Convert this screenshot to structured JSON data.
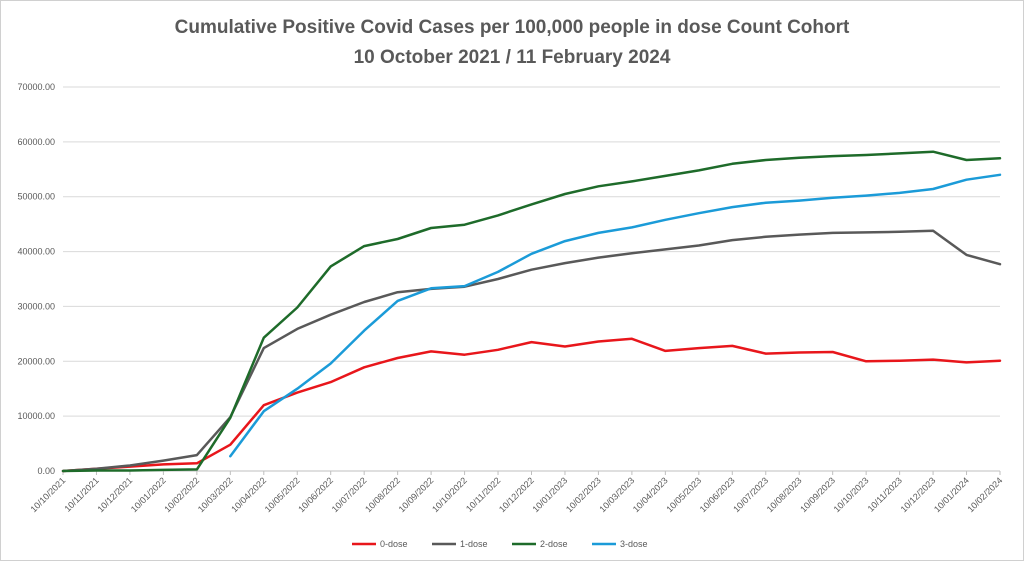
{
  "chart_data": {
    "type": "line",
    "title": "Cumulative Positive Covid Cases per 100,000 people in dose Count Cohort",
    "subtitle": "10 October 2021 / 11 February 2024",
    "xlabel": "",
    "ylabel": "",
    "ylim": [
      0,
      70000
    ],
    "yticks": [
      "0.00",
      "10000.00",
      "20000.00",
      "30000.00",
      "40000.00",
      "50000.00",
      "60000.00",
      "70000.00"
    ],
    "grid": true,
    "legend_position": "bottom",
    "categories": [
      "10/10/2021",
      "10/11/2021",
      "10/12/2021",
      "10/01/2022",
      "10/02/2022",
      "10/03/2022",
      "10/04/2022",
      "10/05/2022",
      "10/06/2022",
      "10/07/2022",
      "10/08/2022",
      "10/09/2022",
      "10/10/2022",
      "10/11/2022",
      "10/12/2022",
      "10/01/2023",
      "10/02/2023",
      "10/03/2023",
      "10/04/2023",
      "10/05/2023",
      "10/06/2023",
      "10/07/2023",
      "10/08/2023",
      "10/09/2023",
      "10/10/2023",
      "10/11/2023",
      "10/12/2023",
      "10/01/2024",
      "10/02/2024"
    ],
    "series": [
      {
        "name": "0-dose",
        "color": "#e8161b",
        "values": [
          0,
          400,
          800,
          1200,
          1400,
          4800,
          12000,
          14300,
          16200,
          18900,
          20600,
          21800,
          21200,
          22100,
          23500,
          22700,
          23600,
          24100,
          21900,
          22400,
          22800,
          21400,
          21600,
          21700,
          20000,
          20100,
          20300,
          19800,
          20100
        ]
      },
      {
        "name": "1-dose",
        "color": "#595959",
        "values": [
          0,
          400,
          1000,
          1900,
          2900,
          9800,
          22400,
          25900,
          28500,
          30800,
          32600,
          33200,
          33600,
          35000,
          36700,
          37900,
          38900,
          39700,
          40400,
          41100,
          42100,
          42700,
          43100,
          43400,
          43500,
          43600,
          43800,
          39400,
          37700
        ]
      },
      {
        "name": "2-dose",
        "color": "#1e6b2a",
        "values": [
          0,
          100,
          100,
          200,
          300,
          9700,
          24300,
          29800,
          37300,
          41000,
          42300,
          44300,
          44900,
          46600,
          48600,
          50500,
          51900,
          52800,
          53800,
          54800,
          56000,
          56700,
          57100,
          57400,
          57600,
          57900,
          58200,
          56700,
          57000
        ]
      },
      {
        "name": "3-dose",
        "color": "#1b9bd8",
        "values": [
          null,
          null,
          null,
          null,
          null,
          2700,
          10900,
          15000,
          19600,
          25600,
          31000,
          33300,
          33700,
          36300,
          39600,
          41900,
          43400,
          44400,
          45800,
          47000,
          48100,
          48900,
          49300,
          49800,
          50200,
          50700,
          51400,
          53100,
          54000
        ]
      }
    ]
  }
}
